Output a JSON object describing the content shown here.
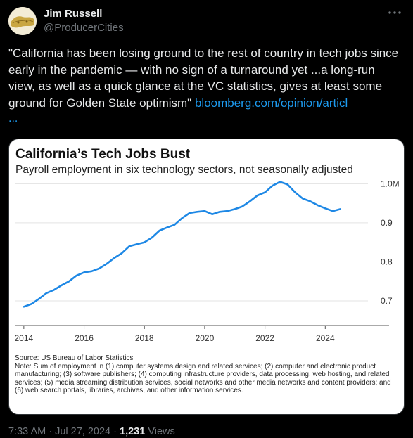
{
  "author": {
    "name": "Jim Russell",
    "handle": "@ProducerCities"
  },
  "tweet": {
    "text": "\"California has been losing ground to the rest of country in tech jobs since early in the pandemic — with no sign of a turnaround yet ...a long-run view, as well as a quick glance at the VC statistics, gives at least some ground for Golden State optimism\"",
    "link_text": "bloomberg.com/opinion/articl",
    "link_ellipsis": "..."
  },
  "chart_card": {
    "title": "California’s Tech Jobs Bust",
    "subtitle": "Payroll employment in six technology sectors, not seasonally adjusted",
    "source_line": "Source: US Bureau of Labor Statistics",
    "note": "Note: Sum of employment in (1) computer systems design and related services; (2) computer and electronic product manufacturing; (3) software publishers; (4) computing infrastructure providers, data processing, web hosting, and related services; (5) media streaming distribution services, social networks and other media networks and content providers; and (6) web search portals, libraries, archives, and other information services."
  },
  "chart_data": {
    "type": "line",
    "title": "California’s Tech Jobs Bust",
    "subtitle": "Payroll employment in six technology sectors, not seasonally adjusted",
    "xlabel": "",
    "ylabel": "",
    "x_ticks": [
      "2014",
      "2016",
      "2018",
      "2020",
      "2022",
      "2024"
    ],
    "x_tick_values": [
      2014,
      2016,
      2018,
      2020,
      2022,
      2024
    ],
    "y_ticks": [
      "0.7",
      "0.8",
      "0.9",
      "1.0M"
    ],
    "y_tick_values": [
      0.7,
      0.8,
      0.9,
      1.0
    ],
    "ylim": [
      0.655,
      1.015
    ],
    "xlim": [
      2013.7,
      2025.3
    ],
    "grid": true,
    "color": "#1e88e5",
    "x": [
      2014.0,
      2014.25,
      2014.5,
      2014.75,
      2015.0,
      2015.25,
      2015.5,
      2015.75,
      2016.0,
      2016.25,
      2016.5,
      2016.75,
      2017.0,
      2017.25,
      2017.5,
      2017.75,
      2018.0,
      2018.25,
      2018.5,
      2018.75,
      2019.0,
      2019.25,
      2019.5,
      2019.75,
      2020.0,
      2020.25,
      2020.5,
      2020.75,
      2021.0,
      2021.25,
      2021.5,
      2021.75,
      2022.0,
      2022.25,
      2022.5,
      2022.75,
      2023.0,
      2023.25,
      2023.5,
      2023.75,
      2024.0,
      2024.25,
      2024.5
    ],
    "values": [
      0.685,
      0.692,
      0.705,
      0.72,
      0.728,
      0.74,
      0.75,
      0.765,
      0.773,
      0.776,
      0.783,
      0.795,
      0.81,
      0.822,
      0.84,
      0.845,
      0.85,
      0.862,
      0.88,
      0.888,
      0.895,
      0.912,
      0.925,
      0.928,
      0.93,
      0.922,
      0.928,
      0.93,
      0.935,
      0.942,
      0.955,
      0.97,
      0.978,
      0.995,
      1.005,
      0.998,
      0.978,
      0.962,
      0.955,
      0.945,
      0.937,
      0.93,
      0.935
    ]
  },
  "post_meta": {
    "time": "7:33 AM",
    "separator": "·",
    "date": "Jul 27, 2024",
    "views_count": "1,231",
    "views_label": "Views"
  },
  "icons": {
    "more": "more-dots-icon",
    "avatar": "avatar-map-image"
  }
}
